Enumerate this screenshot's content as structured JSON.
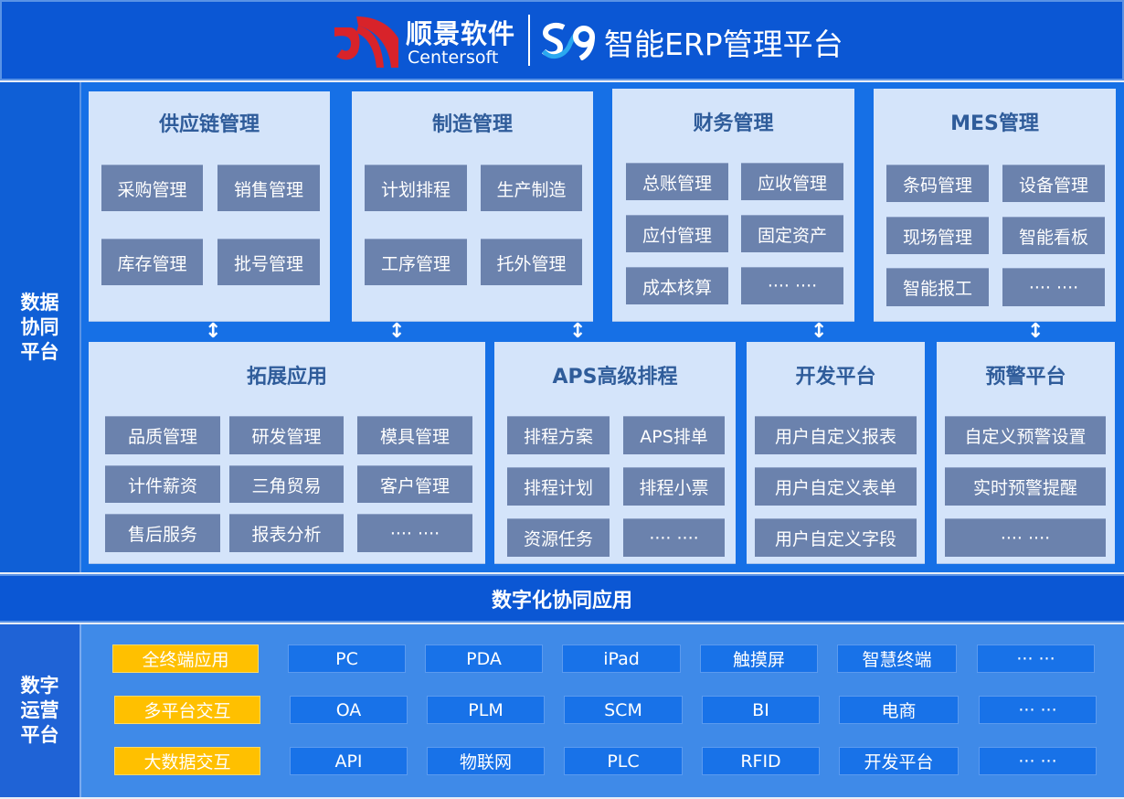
{
  "header": {
    "brand_cn": "顺景软件",
    "brand_en": "Centersoft",
    "s9_logo": "S9",
    "title": "智能ERP管理平台"
  },
  "left_labels": {
    "data_collab": "数据\n协同\n平台",
    "digital_ops": "数字\n运营\n平台"
  },
  "band": "数字化协同应用",
  "panels": [
    {
      "title": "供应链管理",
      "items": [
        "采购管理",
        "销售管理",
        "库存管理",
        "批号管理"
      ]
    },
    {
      "title": "制造管理",
      "items": [
        "计划排程",
        "生产制造",
        "工序管理",
        "托外管理"
      ]
    },
    {
      "title": "财务管理",
      "items": [
        "总账管理",
        "应收管理",
        "应付管理",
        "固定资产",
        "成本核算",
        "···· ····"
      ]
    },
    {
      "title": "MES管理",
      "items": [
        "条码管理",
        "设备管理",
        "现场管理",
        "智能看板",
        "智能报工",
        "···· ····"
      ]
    },
    {
      "title": "拓展应用",
      "items": [
        "品质管理",
        "研发管理",
        "模具管理",
        "计件薪资",
        "三角贸易",
        "客户管理",
        "售后服务",
        "报表分析",
        "···· ····"
      ]
    },
    {
      "title": "APS高级排程",
      "items": [
        "排程方案",
        "APS排单",
        "排程计划",
        "排程小票",
        "资源任务",
        "···· ····"
      ]
    },
    {
      "title": "开发平台",
      "items": [
        "用户自定义报表",
        "用户自定义表单",
        "用户自定义字段"
      ]
    },
    {
      "title": "预警平台",
      "items": [
        "自定义预警设置",
        "实时预警提醒",
        "···· ····"
      ]
    }
  ],
  "platform_rows": [
    {
      "label": "全终端应用",
      "cells": [
        "PC",
        "PDA",
        "iPad",
        "触摸屏",
        "智慧终端",
        "··· ···"
      ]
    },
    {
      "label": "多平台交互",
      "cells": [
        "OA",
        "PLM",
        "SCM",
        "BI",
        "电商",
        "··· ···"
      ]
    },
    {
      "label": "大数据交互",
      "cells": [
        "API",
        "物联网",
        "PLC",
        "RFID",
        "开发平台",
        "··· ···"
      ]
    }
  ],
  "colors": {
    "header": "#0b57d4",
    "panel": "#d4e4fa",
    "item": "#6b82ad",
    "highlight": "#ffc000",
    "cell": "#1872e8",
    "logo_red": "#d8232a"
  }
}
